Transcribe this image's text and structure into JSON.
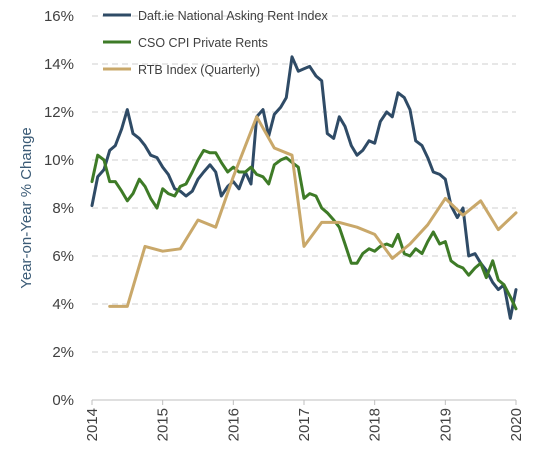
{
  "chart_data": {
    "type": "line",
    "ylabel": "Year-on-Year % Change",
    "xlabel": "",
    "xlim": [
      2014,
      2020
    ],
    "ylim": [
      0,
      16
    ],
    "y_ticks": [
      0,
      2,
      4,
      6,
      8,
      10,
      12,
      14,
      16
    ],
    "y_tick_labels": [
      "0%",
      "2%",
      "4%",
      "6%",
      "8%",
      "10%",
      "12%",
      "14%",
      "16%"
    ],
    "x_ticks": [
      2014,
      2015,
      2016,
      2017,
      2018,
      2019,
      2020
    ],
    "x_tick_labels": [
      "2014",
      "2015",
      "2016",
      "2017",
      "2018",
      "2019",
      "2020"
    ],
    "grid": "horizontal dashed",
    "legend_position": "top-left",
    "series": [
      {
        "name": "Daft.ie National Asking Rent Index",
        "color": "#2f4b66",
        "points": [
          [
            2014.0,
            8.1
          ],
          [
            2014.08,
            9.3
          ],
          [
            2014.17,
            9.6
          ],
          [
            2014.25,
            10.4
          ],
          [
            2014.33,
            10.6
          ],
          [
            2014.42,
            11.3
          ],
          [
            2014.5,
            12.1
          ],
          [
            2014.58,
            11.1
          ],
          [
            2014.67,
            10.9
          ],
          [
            2014.75,
            10.6
          ],
          [
            2014.83,
            10.2
          ],
          [
            2014.92,
            10.1
          ],
          [
            2015.0,
            9.7
          ],
          [
            2015.08,
            9.4
          ],
          [
            2015.17,
            8.8
          ],
          [
            2015.25,
            8.7
          ],
          [
            2015.33,
            8.5
          ],
          [
            2015.42,
            8.7
          ],
          [
            2015.5,
            9.2
          ],
          [
            2015.58,
            9.5
          ],
          [
            2015.67,
            9.8
          ],
          [
            2015.75,
            9.5
          ],
          [
            2015.83,
            8.5
          ],
          [
            2015.92,
            8.9
          ],
          [
            2016.0,
            9.1
          ],
          [
            2016.08,
            8.8
          ],
          [
            2016.17,
            9.5
          ],
          [
            2016.25,
            9.0
          ],
          [
            2016.33,
            11.8
          ],
          [
            2016.42,
            12.1
          ],
          [
            2016.5,
            11.0
          ],
          [
            2016.58,
            11.9
          ],
          [
            2016.67,
            12.2
          ],
          [
            2016.75,
            12.6
          ],
          [
            2016.83,
            14.3
          ],
          [
            2016.92,
            13.7
          ],
          [
            2017.0,
            13.8
          ],
          [
            2017.08,
            13.9
          ],
          [
            2017.17,
            13.5
          ],
          [
            2017.25,
            13.3
          ],
          [
            2017.33,
            11.1
          ],
          [
            2017.42,
            10.9
          ],
          [
            2017.5,
            11.8
          ],
          [
            2017.58,
            11.4
          ],
          [
            2017.67,
            10.6
          ],
          [
            2017.75,
            10.2
          ],
          [
            2017.83,
            10.4
          ],
          [
            2017.92,
            10.8
          ],
          [
            2018.0,
            10.7
          ],
          [
            2018.08,
            11.6
          ],
          [
            2018.17,
            12.0
          ],
          [
            2018.25,
            11.8
          ],
          [
            2018.33,
            12.8
          ],
          [
            2018.42,
            12.6
          ],
          [
            2018.5,
            12.1
          ],
          [
            2018.58,
            10.8
          ],
          [
            2018.67,
            10.6
          ],
          [
            2018.75,
            10.1
          ],
          [
            2018.83,
            9.5
          ],
          [
            2018.92,
            9.4
          ],
          [
            2019.0,
            9.2
          ],
          [
            2019.08,
            8.1
          ],
          [
            2019.17,
            7.6
          ],
          [
            2019.25,
            8.0
          ],
          [
            2019.33,
            6.0
          ],
          [
            2019.42,
            6.1
          ],
          [
            2019.5,
            5.7
          ],
          [
            2019.58,
            5.4
          ],
          [
            2019.67,
            4.9
          ],
          [
            2019.75,
            4.6
          ],
          [
            2019.83,
            4.8
          ],
          [
            2019.92,
            3.4
          ],
          [
            2020.0,
            4.6
          ]
        ]
      },
      {
        "name": "CSO CPI Private Rents",
        "color": "#3e7b27",
        "points": [
          [
            2014.0,
            9.1
          ],
          [
            2014.08,
            10.2
          ],
          [
            2014.17,
            10.0
          ],
          [
            2014.25,
            9.1
          ],
          [
            2014.33,
            9.1
          ],
          [
            2014.42,
            8.7
          ],
          [
            2014.5,
            8.3
          ],
          [
            2014.58,
            8.6
          ],
          [
            2014.67,
            9.2
          ],
          [
            2014.75,
            8.9
          ],
          [
            2014.83,
            8.4
          ],
          [
            2014.92,
            8.0
          ],
          [
            2015.0,
            8.8
          ],
          [
            2015.08,
            8.6
          ],
          [
            2015.17,
            8.5
          ],
          [
            2015.25,
            8.9
          ],
          [
            2015.33,
            9.0
          ],
          [
            2015.42,
            9.5
          ],
          [
            2015.5,
            10.0
          ],
          [
            2015.58,
            10.4
          ],
          [
            2015.67,
            10.3
          ],
          [
            2015.75,
            10.3
          ],
          [
            2015.83,
            9.9
          ],
          [
            2015.92,
            9.5
          ],
          [
            2016.0,
            9.7
          ],
          [
            2016.08,
            9.5
          ],
          [
            2016.17,
            9.5
          ],
          [
            2016.25,
            9.7
          ],
          [
            2016.33,
            9.4
          ],
          [
            2016.42,
            9.3
          ],
          [
            2016.5,
            9.0
          ],
          [
            2016.58,
            9.8
          ],
          [
            2016.67,
            10.0
          ],
          [
            2016.75,
            10.1
          ],
          [
            2016.83,
            9.9
          ],
          [
            2016.92,
            9.7
          ],
          [
            2017.0,
            8.4
          ],
          [
            2017.08,
            8.6
          ],
          [
            2017.17,
            8.5
          ],
          [
            2017.25,
            8.0
          ],
          [
            2017.33,
            7.8
          ],
          [
            2017.42,
            7.5
          ],
          [
            2017.5,
            7.2
          ],
          [
            2017.58,
            6.5
          ],
          [
            2017.67,
            5.7
          ],
          [
            2017.75,
            5.7
          ],
          [
            2017.83,
            6.1
          ],
          [
            2017.92,
            6.3
          ],
          [
            2018.0,
            6.2
          ],
          [
            2018.08,
            6.4
          ],
          [
            2018.17,
            6.5
          ],
          [
            2018.25,
            6.4
          ],
          [
            2018.33,
            6.9
          ],
          [
            2018.42,
            6.1
          ],
          [
            2018.5,
            6.0
          ],
          [
            2018.58,
            6.3
          ],
          [
            2018.67,
            6.1
          ],
          [
            2018.75,
            6.6
          ],
          [
            2018.83,
            7.0
          ],
          [
            2018.92,
            6.5
          ],
          [
            2019.0,
            6.6
          ],
          [
            2019.08,
            5.8
          ],
          [
            2019.17,
            5.6
          ],
          [
            2019.25,
            5.5
          ],
          [
            2019.33,
            5.2
          ],
          [
            2019.42,
            5.5
          ],
          [
            2019.5,
            5.7
          ],
          [
            2019.58,
            5.1
          ],
          [
            2019.67,
            5.8
          ],
          [
            2019.75,
            5.0
          ],
          [
            2019.83,
            4.8
          ],
          [
            2019.92,
            4.3
          ],
          [
            2020.0,
            3.8
          ]
        ]
      },
      {
        "name": "RTB  Index (Quarterly)",
        "color": "#c9a86a",
        "points": [
          [
            2014.25,
            3.9
          ],
          [
            2014.5,
            3.9
          ],
          [
            2014.75,
            6.4
          ],
          [
            2015.0,
            6.2
          ],
          [
            2015.25,
            6.3
          ],
          [
            2015.5,
            7.5
          ],
          [
            2015.75,
            7.2
          ],
          [
            2016.0,
            9.3
          ],
          [
            2016.33,
            11.8
          ],
          [
            2016.58,
            10.5
          ],
          [
            2016.83,
            10.2
          ],
          [
            2017.0,
            6.4
          ],
          [
            2017.25,
            7.4
          ],
          [
            2017.5,
            7.4
          ],
          [
            2017.75,
            7.2
          ],
          [
            2018.0,
            6.9
          ],
          [
            2018.25,
            5.9
          ],
          [
            2018.5,
            6.5
          ],
          [
            2018.75,
            7.3
          ],
          [
            2019.0,
            8.4
          ],
          [
            2019.25,
            7.7
          ],
          [
            2019.5,
            8.3
          ],
          [
            2019.75,
            7.1
          ],
          [
            2020.0,
            7.8
          ]
        ]
      }
    ]
  }
}
